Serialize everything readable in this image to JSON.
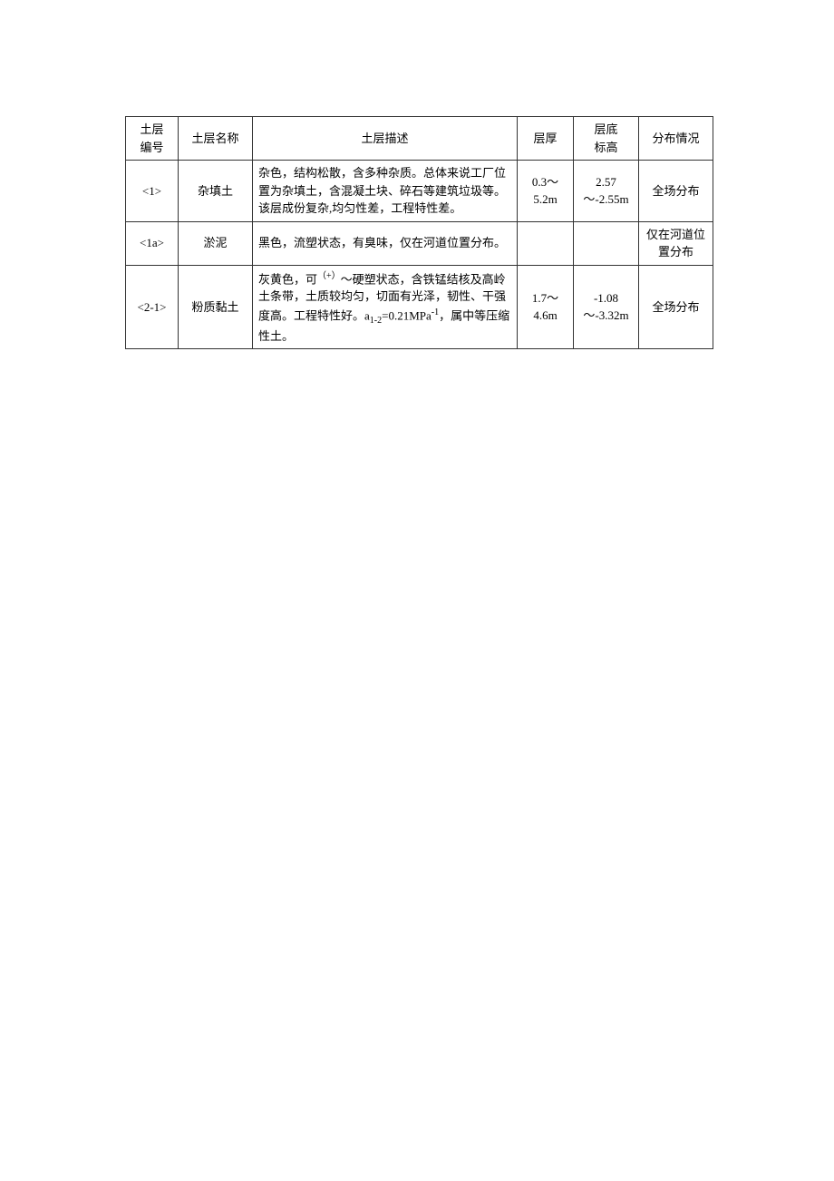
{
  "table": {
    "headers": {
      "id": "土层\n编号",
      "name": "土层名称",
      "desc": "土层描述",
      "thickness": "层厚",
      "depth": "层底\n标高",
      "distribution": "分布情况"
    },
    "rows": [
      {
        "id": "<1>",
        "name": "杂填土",
        "desc": "杂色，结构松散，含多种杂质。总体来说工厂位置为杂填土，含混凝土块、碎石等建筑垃圾等。该层成份复杂,均匀性差，工程特性差。",
        "thickness": "0.3～5.2m",
        "depth": "2.57～-2.55m",
        "distribution": "全场分布"
      },
      {
        "id": "<1a>",
        "name": "淤泥",
        "desc": "黑色，流塑状态，有臭味，仅在河道位置分布。",
        "thickness": "",
        "depth": "",
        "distribution": "仅在河道位置分布"
      },
      {
        "id": "<2-1>",
        "name": "粉质黏土",
        "desc_html": "灰黄色，可<sup>（+）</sup>～硬塑状态，含铁锰结核及高岭土条带，土质较均匀，切面有光泽，韧性、干强度高。工程特性好。a<sub>1-2</sub>=0.21MPa<sup>-1</sup>，属中等压缩性土。",
        "thickness": "1.7～4.6m",
        "depth": "-1.08～-3.32m",
        "distribution": "全场分布"
      }
    ]
  },
  "colors": {
    "border": "#333333",
    "text": "#000000",
    "background": "#ffffff"
  }
}
